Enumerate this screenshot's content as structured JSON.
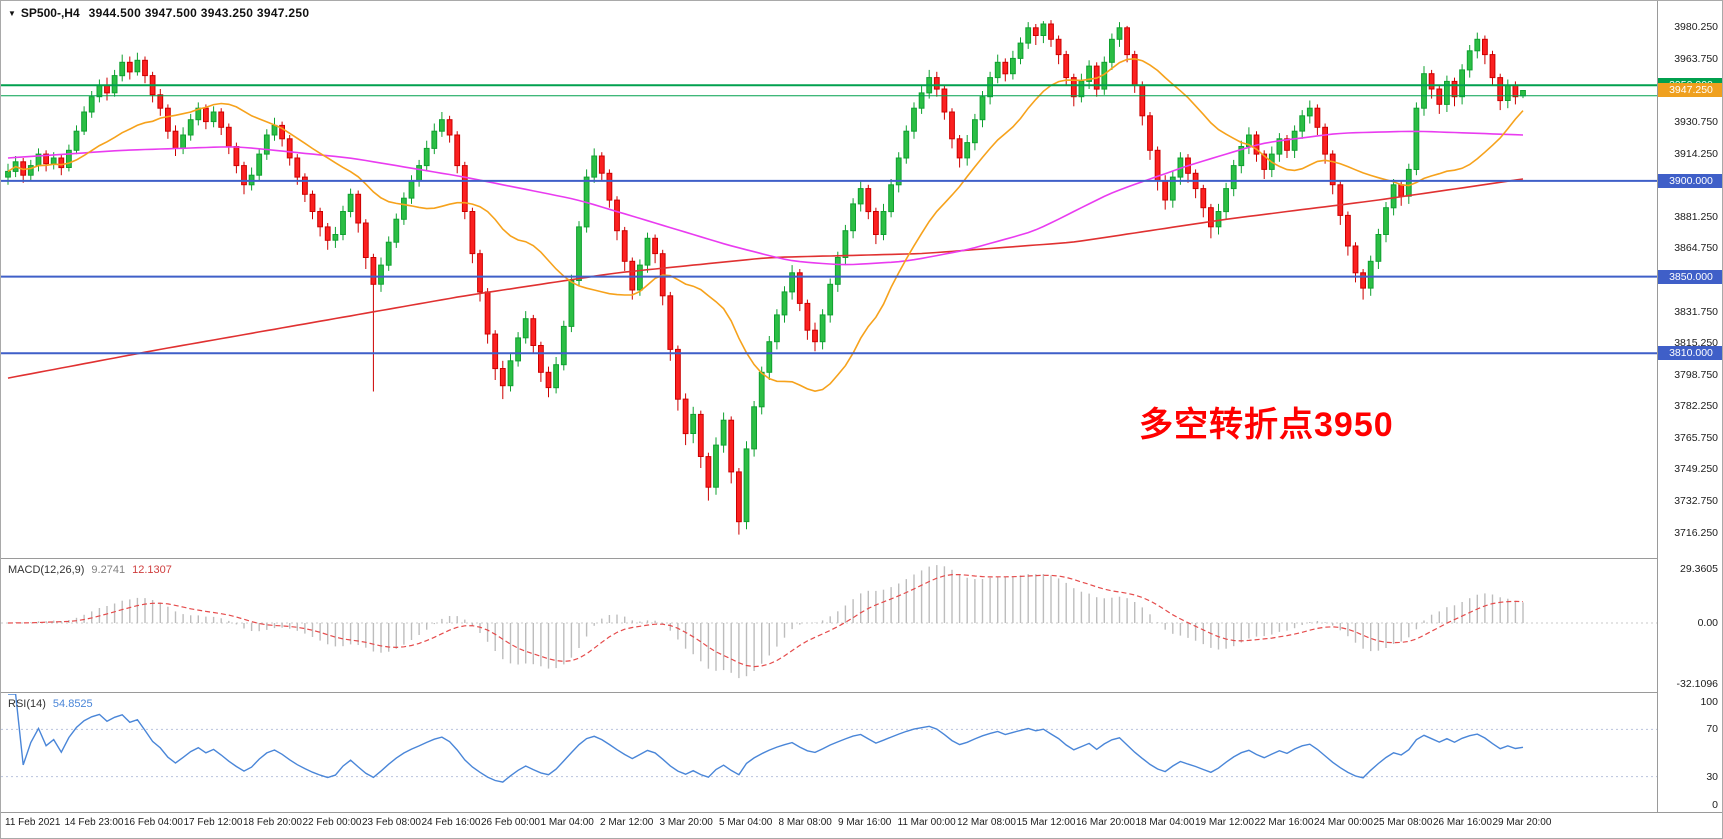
{
  "header": {
    "marker": "▼",
    "symbol": "SP500-,H4",
    "ohlc": "3944.500 3947.500 3943.250 3947.250"
  },
  "annotation": {
    "text": "多空转折点3950",
    "color": "#FF0000"
  },
  "price_scale": {
    "labels": [
      "3980.250",
      "3963.750",
      "3947.250",
      "3930.750",
      "3914.250",
      "3897.750",
      "3881.250",
      "3864.750",
      "3848.250",
      "3831.750",
      "3815.250",
      "3798.750",
      "3782.250",
      "3765.750",
      "3749.250",
      "3732.750",
      "3716.250"
    ]
  },
  "tags": [
    {
      "text": "3950.000",
      "price": 3950.0,
      "bg": "#00A04E",
      "fg": "#FFFFFF"
    },
    {
      "text": "3947.250",
      "price": 3947.25,
      "bg": "#EFA01F",
      "fg": "#FFFFFF"
    },
    {
      "text": "3900.000",
      "price": 3900.0,
      "bg": "#3F5FC8",
      "fg": "#FFFFFF"
    },
    {
      "text": "3850.000",
      "price": 3850.0,
      "bg": "#3F5FC8",
      "fg": "#FFFFFF"
    },
    {
      "text": "3810.000",
      "price": 3810.0,
      "bg": "#3F5FC8",
      "fg": "#FFFFFF"
    }
  ],
  "panels": {
    "macd": {
      "name_label": "MACD(12,26,9)",
      "value_main": "9.2741",
      "value_signal": "12.1307",
      "scale_top": "29.3605",
      "scale_zero": "0.00",
      "scale_bottom": "-32.1096"
    },
    "rsi": {
      "name_label": "RSI(14)",
      "value": "54.8525",
      "scale": [
        "100",
        "70",
        "30",
        "0"
      ]
    }
  },
  "time_axis": {
    "labels": [
      "11 Feb 2021",
      "14 Feb 23:00",
      "16 Feb 04:00",
      "17 Feb 12:00",
      "18 Feb 20:00",
      "22 Feb 00:00",
      "23 Feb 08:00",
      "24 Feb 16:00",
      "26 Feb 00:00",
      "1 Mar 04:00",
      "2 Mar 12:00",
      "3 Mar 20:00",
      "5 Mar 04:00",
      "8 Mar 08:00",
      "9 Mar 16:00",
      "11 Mar 00:00",
      "12 Mar 08:00",
      "15 Mar 12:00",
      "16 Mar 20:00",
      "18 Mar 04:00",
      "19 Mar 12:00",
      "22 Mar 16:00",
      "24 Mar 00:00",
      "25 Mar 08:00",
      "26 Mar 16:00",
      "29 Mar 20:00"
    ]
  },
  "chart_data": {
    "type": "candlestick",
    "symbol": "SP500-",
    "timeframe": "H4",
    "title": "SP500-,H4",
    "y_range": [
      3703,
      3994
    ],
    "colors": {
      "up_fill": "#2BBE45",
      "up_stroke": "#0FA030",
      "down_fill": "#FB2020",
      "down_stroke": "#CC0000",
      "ma_fast": "#F6A21C",
      "ma_mid": "#E93CF0",
      "ma_slow": "#E03131",
      "macd_hist": "#BDBDBD",
      "macd_signal": "#E54B4B",
      "rsi_line": "#4A86D8"
    },
    "hlines": [
      {
        "price": 3950.0,
        "color": "#00A04E",
        "width": 2
      },
      {
        "price": 3944.5,
        "color": "#00A04E",
        "width": 1
      },
      {
        "price": 3900.0,
        "color": "#3F5FC8",
        "width": 2
      },
      {
        "price": 3850.0,
        "color": "#3F5FC8",
        "width": 2
      },
      {
        "price": 3810.0,
        "color": "#3F5FC8",
        "width": 2
      }
    ],
    "current_price": 3947.25,
    "ma_fast_period": 20,
    "ma_mid_anchors": [
      [
        0,
        3912
      ],
      [
        15,
        3916
      ],
      [
        30,
        3918
      ],
      [
        45,
        3912
      ],
      [
        60,
        3902
      ],
      [
        75,
        3890
      ],
      [
        85,
        3878
      ],
      [
        95,
        3866
      ],
      [
        103,
        3858
      ],
      [
        110,
        3856
      ],
      [
        118,
        3858
      ],
      [
        126,
        3864
      ],
      [
        135,
        3874
      ],
      [
        145,
        3894
      ],
      [
        155,
        3908
      ],
      [
        165,
        3920
      ],
      [
        175,
        3925
      ],
      [
        185,
        3926
      ],
      [
        199,
        3924
      ]
    ],
    "ma_slow_anchors": [
      [
        0,
        3797
      ],
      [
        20,
        3812
      ],
      [
        40,
        3826
      ],
      [
        60,
        3840
      ],
      [
        80,
        3852
      ],
      [
        100,
        3860
      ],
      [
        120,
        3862
      ],
      [
        140,
        3868
      ],
      [
        160,
        3880
      ],
      [
        180,
        3890
      ],
      [
        199,
        3901
      ]
    ],
    "macd": {
      "fast": 12,
      "slow": 26,
      "signal": 9,
      "range": [
        -32.1096,
        29.3605
      ]
    },
    "rsi": {
      "period": 14,
      "levels": [
        70,
        30
      ],
      "range": [
        0,
        100
      ]
    },
    "ohlc": [
      [
        3902,
        3909,
        3898,
        3905
      ],
      [
        3905,
        3913,
        3902,
        3910
      ],
      [
        3910,
        3912,
        3899,
        3903
      ],
      [
        3903,
        3911,
        3900,
        3908
      ],
      [
        3908,
        3917,
        3905,
        3914
      ],
      [
        3914,
        3916,
        3905,
        3909
      ],
      [
        3909,
        3915,
        3906,
        3912
      ],
      [
        3912,
        3914,
        3903,
        3907
      ],
      [
        3907,
        3919,
        3905,
        3916
      ],
      [
        3916,
        3929,
        3914,
        3926
      ],
      [
        3926,
        3939,
        3924,
        3936
      ],
      [
        3936,
        3947,
        3933,
        3944
      ],
      [
        3944,
        3953,
        3941,
        3950
      ],
      [
        3950,
        3954,
        3942,
        3946
      ],
      [
        3946,
        3958,
        3944,
        3955
      ],
      [
        3955,
        3966,
        3952,
        3962
      ],
      [
        3962,
        3965,
        3953,
        3957
      ],
      [
        3957,
        3967,
        3955,
        3963
      ],
      [
        3963,
        3965,
        3951,
        3955
      ],
      [
        3955,
        3957,
        3941,
        3945
      ],
      [
        3945,
        3948,
        3934,
        3938
      ],
      [
        3938,
        3940,
        3922,
        3926
      ],
      [
        3926,
        3929,
        3913,
        3917
      ],
      [
        3917,
        3928,
        3914,
        3924
      ],
      [
        3924,
        3935,
        3921,
        3932
      ],
      [
        3932,
        3941,
        3929,
        3938
      ],
      [
        3938,
        3940,
        3927,
        3931
      ],
      [
        3931,
        3939,
        3928,
        3936
      ],
      [
        3936,
        3938,
        3924,
        3928
      ],
      [
        3928,
        3930,
        3914,
        3918
      ],
      [
        3918,
        3920,
        3904,
        3908
      ],
      [
        3908,
        3910,
        3893,
        3898
      ],
      [
        3898,
        3907,
        3895,
        3903
      ],
      [
        3903,
        3917,
        3900,
        3914
      ],
      [
        3914,
        3927,
        3911,
        3924
      ],
      [
        3924,
        3933,
        3921,
        3929
      ],
      [
        3929,
        3931,
        3918,
        3922
      ],
      [
        3922,
        3924,
        3908,
        3912
      ],
      [
        3912,
        3914,
        3898,
        3902
      ],
      [
        3902,
        3904,
        3889,
        3893
      ],
      [
        3893,
        3895,
        3880,
        3884
      ],
      [
        3884,
        3886,
        3871,
        3876
      ],
      [
        3876,
        3878,
        3864,
        3869
      ],
      [
        3869,
        3876,
        3865,
        3872
      ],
      [
        3872,
        3887,
        3869,
        3884
      ],
      [
        3884,
        3896,
        3881,
        3893
      ],
      [
        3893,
        3895,
        3873,
        3878
      ],
      [
        3878,
        3880,
        3854,
        3860
      ],
      [
        3860,
        3862,
        3790,
        3846
      ],
      [
        3846,
        3860,
        3842,
        3856
      ],
      [
        3856,
        3871,
        3853,
        3868
      ],
      [
        3868,
        3883,
        3865,
        3880
      ],
      [
        3880,
        3894,
        3877,
        3891
      ],
      [
        3891,
        3903,
        3888,
        3900
      ],
      [
        3900,
        3911,
        3897,
        3908
      ],
      [
        3908,
        3921,
        3905,
        3917
      ],
      [
        3917,
        3930,
        3914,
        3926
      ],
      [
        3926,
        3936,
        3923,
        3932
      ],
      [
        3932,
        3934,
        3920,
        3924
      ],
      [
        3924,
        3926,
        3904,
        3908
      ],
      [
        3908,
        3910,
        3880,
        3884
      ],
      [
        3884,
        3886,
        3857,
        3862
      ],
      [
        3862,
        3864,
        3837,
        3842
      ],
      [
        3842,
        3844,
        3815,
        3820
      ],
      [
        3820,
        3822,
        3796,
        3802
      ],
      [
        3802,
        3806,
        3786,
        3793
      ],
      [
        3793,
        3810,
        3790,
        3806
      ],
      [
        3806,
        3821,
        3803,
        3818
      ],
      [
        3818,
        3832,
        3815,
        3828
      ],
      [
        3828,
        3830,
        3810,
        3814
      ],
      [
        3814,
        3816,
        3795,
        3800
      ],
      [
        3800,
        3803,
        3787,
        3792
      ],
      [
        3792,
        3808,
        3789,
        3804
      ],
      [
        3804,
        3827,
        3801,
        3824
      ],
      [
        3824,
        3851,
        3821,
        3848
      ],
      [
        3848,
        3879,
        3845,
        3876
      ],
      [
        3876,
        3906,
        3873,
        3902
      ],
      [
        3902,
        3917,
        3899,
        3913
      ],
      [
        3913,
        3915,
        3900,
        3904
      ],
      [
        3904,
        3906,
        3886,
        3890
      ],
      [
        3890,
        3892,
        3869,
        3874
      ],
      [
        3874,
        3876,
        3853,
        3858
      ],
      [
        3858,
        3860,
        3838,
        3843
      ],
      [
        3843,
        3859,
        3840,
        3856
      ],
      [
        3856,
        3873,
        3852,
        3870
      ],
      [
        3870,
        3872,
        3857,
        3862
      ],
      [
        3862,
        3864,
        3835,
        3840
      ],
      [
        3840,
        3842,
        3806,
        3812
      ],
      [
        3812,
        3814,
        3780,
        3786
      ],
      [
        3786,
        3789,
        3762,
        3768
      ],
      [
        3768,
        3782,
        3763,
        3778
      ],
      [
        3778,
        3780,
        3750,
        3756
      ],
      [
        3756,
        3758,
        3733,
        3740
      ],
      [
        3740,
        3766,
        3736,
        3762
      ],
      [
        3762,
        3779,
        3758,
        3775
      ],
      [
        3775,
        3777,
        3742,
        3748
      ],
      [
        3748,
        3750,
        3715.25,
        3722
      ],
      [
        3722,
        3764,
        3718,
        3760
      ],
      [
        3760,
        3785,
        3756,
        3782
      ],
      [
        3782,
        3803,
        3778,
        3800
      ],
      [
        3800,
        3819,
        3796,
        3816
      ],
      [
        3816,
        3833,
        3812,
        3830
      ],
      [
        3830,
        3845,
        3826,
        3842
      ],
      [
        3842,
        3856,
        3838,
        3852
      ],
      [
        3852,
        3854,
        3832,
        3836
      ],
      [
        3836,
        3838,
        3817,
        3822
      ],
      [
        3822,
        3826,
        3811,
        3816
      ],
      [
        3816,
        3833,
        3812,
        3830
      ],
      [
        3830,
        3849,
        3826,
        3846
      ],
      [
        3846,
        3863,
        3842,
        3860
      ],
      [
        3860,
        3877,
        3856,
        3874
      ],
      [
        3874,
        3891,
        3870,
        3888
      ],
      [
        3888,
        3900,
        3884,
        3896
      ],
      [
        3896,
        3898,
        3880,
        3884
      ],
      [
        3884,
        3886,
        3867,
        3872
      ],
      [
        3872,
        3888,
        3869,
        3884
      ],
      [
        3884,
        3901,
        3881,
        3898
      ],
      [
        3898,
        3915,
        3894,
        3912
      ],
      [
        3912,
        3929,
        3909,
        3926
      ],
      [
        3926,
        3941,
        3922,
        3938
      ],
      [
        3938,
        3950,
        3935,
        3946
      ],
      [
        3946,
        3958,
        3943,
        3954
      ],
      [
        3954,
        3957,
        3944,
        3948
      ],
      [
        3948,
        3950,
        3932,
        3936
      ],
      [
        3936,
        3938,
        3917,
        3922
      ],
      [
        3922,
        3924,
        3907,
        3912
      ],
      [
        3912,
        3924,
        3908,
        3920
      ],
      [
        3920,
        3935,
        3916,
        3932
      ],
      [
        3932,
        3947,
        3928,
        3944
      ],
      [
        3944,
        3957,
        3940,
        3954
      ],
      [
        3954,
        3966,
        3951,
        3962
      ],
      [
        3962,
        3964,
        3952,
        3956
      ],
      [
        3956,
        3968,
        3953,
        3964
      ],
      [
        3964,
        3975,
        3961,
        3972
      ],
      [
        3972,
        3983,
        3969,
        3980
      ],
      [
        3980,
        3982,
        3971,
        3976
      ],
      [
        3976,
        3983.5,
        3972,
        3982
      ],
      [
        3982,
        3984,
        3970,
        3974
      ],
      [
        3974,
        3976,
        3961,
        3966
      ],
      [
        3966,
        3968,
        3950,
        3954
      ],
      [
        3954,
        3956,
        3939,
        3944
      ],
      [
        3944,
        3956,
        3941,
        3952
      ],
      [
        3952,
        3963,
        3948,
        3960
      ],
      [
        3960,
        3962,
        3944,
        3948
      ],
      [
        3948,
        3965,
        3945,
        3962
      ],
      [
        3962,
        3977,
        3958,
        3974
      ],
      [
        3974,
        3983,
        3970,
        3980
      ],
      [
        3980,
        3981,
        3962,
        3966
      ],
      [
        3966,
        3968,
        3946,
        3950
      ],
      [
        3950,
        3952,
        3929,
        3934
      ],
      [
        3934,
        3936,
        3911,
        3916
      ],
      [
        3916,
        3918,
        3895,
        3900
      ],
      [
        3900,
        3903,
        3885,
        3890
      ],
      [
        3890,
        3905,
        3886,
        3902
      ],
      [
        3902,
        3915,
        3898,
        3912
      ],
      [
        3912,
        3914,
        3899,
        3904
      ],
      [
        3904,
        3906,
        3891,
        3896
      ],
      [
        3896,
        3898,
        3881,
        3886
      ],
      [
        3886,
        3888,
        3870,
        3876
      ],
      [
        3876,
        3888,
        3872,
        3884
      ],
      [
        3884,
        3899,
        3880,
        3896
      ],
      [
        3896,
        3911,
        3892,
        3908
      ],
      [
        3908,
        3921,
        3904,
        3918
      ],
      [
        3918,
        3928,
        3914,
        3924
      ],
      [
        3924,
        3926,
        3910,
        3914
      ],
      [
        3914,
        3916,
        3901,
        3906
      ],
      [
        3906,
        3918,
        3902,
        3914
      ],
      [
        3914,
        3925,
        3910,
        3922
      ],
      [
        3922,
        3924,
        3912,
        3916
      ],
      [
        3916,
        3929,
        3912,
        3926
      ],
      [
        3926,
        3937,
        3922,
        3934
      ],
      [
        3934,
        3942,
        3930,
        3938
      ],
      [
        3938,
        3940,
        3924,
        3928
      ],
      [
        3928,
        3930,
        3909,
        3914
      ],
      [
        3914,
        3916,
        3893,
        3898
      ],
      [
        3898,
        3900,
        3877,
        3882
      ],
      [
        3882,
        3884,
        3861,
        3866
      ],
      [
        3866,
        3868,
        3847,
        3852
      ],
      [
        3852,
        3854,
        3838,
        3844
      ],
      [
        3844,
        3861,
        3840,
        3858
      ],
      [
        3858,
        3875,
        3854,
        3872
      ],
      [
        3872,
        3889,
        3868,
        3886
      ],
      [
        3886,
        3901,
        3882,
        3898
      ],
      [
        3898,
        3900,
        3887,
        3892
      ],
      [
        3892,
        3909,
        3888,
        3906
      ],
      [
        3906,
        3941,
        3903,
        3938
      ],
      [
        3938,
        3960,
        3934,
        3956
      ],
      [
        3956,
        3958,
        3943,
        3948
      ],
      [
        3948,
        3950,
        3935,
        3940
      ],
      [
        3940,
        3955,
        3936,
        3952
      ],
      [
        3952,
        3954,
        3939,
        3944
      ],
      [
        3944,
        3961,
        3940,
        3958
      ],
      [
        3958,
        3971,
        3954,
        3968
      ],
      [
        3968,
        3977.5,
        3964,
        3974
      ],
      [
        3974,
        3976,
        3961,
        3966
      ],
      [
        3966,
        3968,
        3950,
        3954
      ],
      [
        3954,
        3956,
        3937,
        3942
      ],
      [
        3942,
        3953,
        3938,
        3950
      ],
      [
        3950,
        3952,
        3940,
        3944
      ],
      [
        3944.5,
        3947.5,
        3943.25,
        3947.25
      ]
    ]
  }
}
